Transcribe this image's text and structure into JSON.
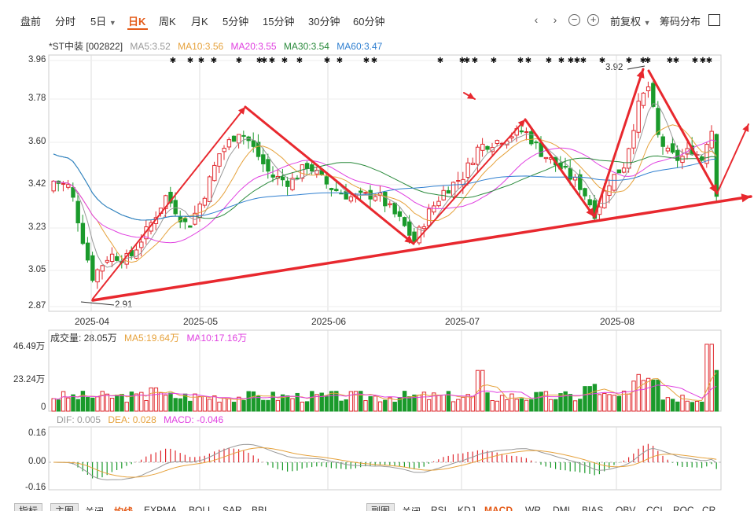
{
  "toolbar": {
    "tabs": [
      "盘前",
      "分时",
      "5日",
      "日K",
      "周K",
      "月K",
      "5分钟",
      "15分钟",
      "30分钟",
      "60分钟"
    ],
    "active_tab": "日K",
    "prev_icon": "chevron-left-icon",
    "next_icon": "chevron-right-icon",
    "zoom_out_icon": "minus-circle-icon",
    "zoom_in_icon": "plus-circle-icon",
    "adjust_label": "前复权",
    "chip_dist_label": "筹码分布",
    "fullscreen_icon": "fullscreen-icon"
  },
  "stock": {
    "name": "*ST中装 [002822]",
    "ma5": "MA5:3.52",
    "ma10": "MA10:3.56",
    "ma20": "MA20:3.55",
    "ma30": "MA30:3.54",
    "ma60": "MA60:3.47"
  },
  "colors": {
    "up": "#e0282e",
    "down": "#1a9a2b",
    "ma5": "#999999",
    "ma10": "#e6a23c",
    "ma20": "#e040e0",
    "ma30": "#2a8a3c",
    "ma60": "#2f7fd0",
    "accent": "#e45a17",
    "annotation": "#e8282e"
  },
  "price_axis": {
    "ticks": [
      "3.96",
      "3.78",
      "3.60",
      "3.42",
      "3.23",
      "3.05",
      "2.87"
    ]
  },
  "date_axis": [
    "2025-04",
    "2025-05",
    "2025-06",
    "2025-07",
    "2025-08"
  ],
  "annotations": {
    "low_label": "2.91",
    "high_label": "3.92"
  },
  "volume": {
    "legend_main": "成交量: 28.05万",
    "ma5": "MA5:19.64万",
    "ma10": "MA10:17.16万",
    "ticks": [
      "46.49万",
      "23.24万",
      "0"
    ]
  },
  "macd": {
    "dif": "DIF: 0.005",
    "dea": "DEA: 0.028",
    "macd": "MACD: -0.046",
    "ticks": [
      "0.16",
      "0.00",
      "-0.16"
    ]
  },
  "bottom_tabs": {
    "left": [
      "指标",
      "主图",
      "关闭",
      "均线",
      "EXPMA",
      "BOLL",
      "SAR",
      "BBI"
    ],
    "left_active": "均线",
    "right": [
      "副图",
      "关闭",
      "RSI",
      "KDJ",
      "MACD",
      "WR",
      "DMI",
      "BIAS",
      "OBV",
      "CCI",
      "ROC",
      "CR"
    ],
    "right_active": "MACD"
  }
}
